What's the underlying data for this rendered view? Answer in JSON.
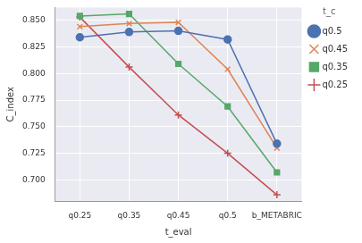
{
  "chart_data": {
    "type": "line",
    "x_label": "t_eval",
    "y_label": "C_index",
    "categories": [
      "q0.25",
      "q0.35",
      "q0.45",
      "q0.5",
      "b_METABRIC"
    ],
    "series": [
      {
        "name": "q0.5",
        "color": "#4c72b0",
        "marker": "circle",
        "values": [
          0.834,
          0.839,
          0.84,
          0.832,
          0.734
        ]
      },
      {
        "name": "q0.45",
        "color": "#dd8452",
        "marker": "x",
        "values": [
          0.844,
          0.847,
          0.848,
          0.804,
          0.73
        ]
      },
      {
        "name": "q0.35",
        "color": "#55a868",
        "marker": "square",
        "values": [
          0.854,
          0.856,
          0.809,
          0.769,
          0.707
        ]
      },
      {
        "name": "q0.25",
        "color": "#c44e52",
        "marker": "plus",
        "values": [
          0.853,
          0.806,
          0.761,
          0.725,
          0.686
        ]
      }
    ],
    "legend_title": "t_c",
    "legend": "right",
    "ylim": [
      0.68,
      0.862
    ],
    "yticks": [
      {
        "value": 0.7,
        "label": "0.700"
      },
      0.725,
      {
        "value": 0.75,
        "label": "0.750"
      },
      0.775,
      {
        "value": 0.8,
        "label": "0.800"
      },
      0.825,
      {
        "value": 0.85,
        "label": "0.850"
      }
    ],
    "grid": true
  }
}
